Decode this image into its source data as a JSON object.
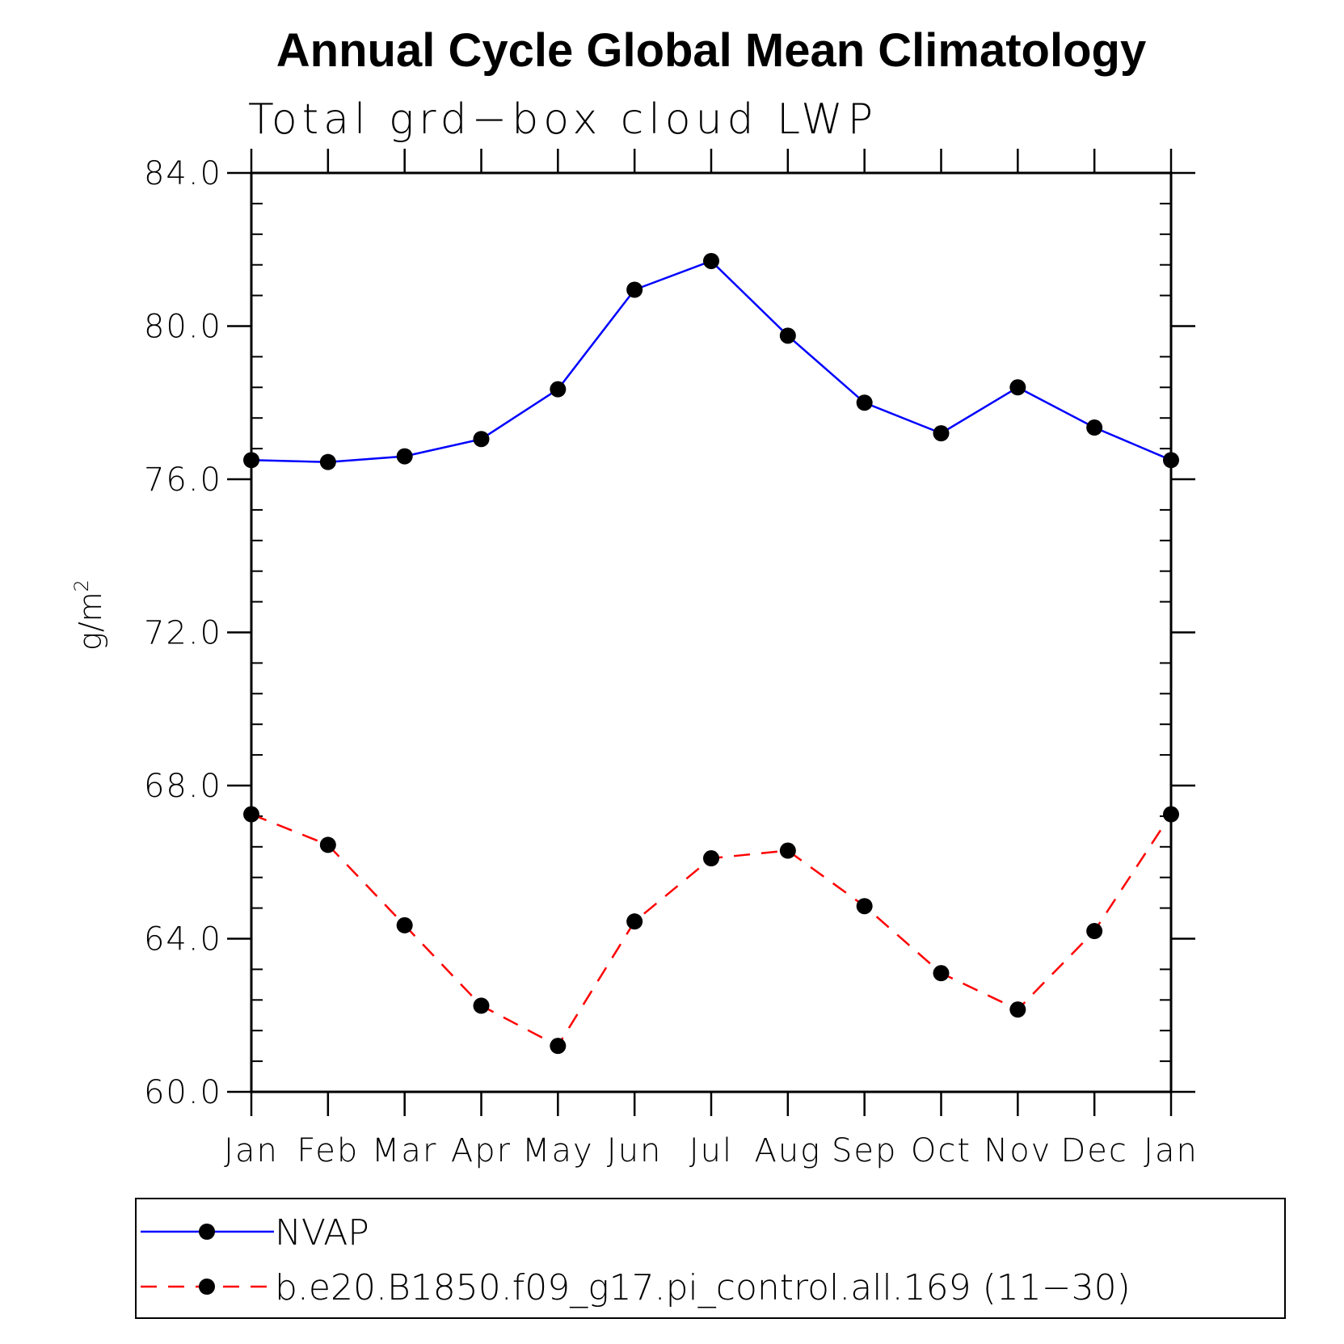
{
  "chart_data": {
    "type": "line",
    "title": "Annual Cycle Global Mean Climatology",
    "subtitle": "Total grd−box cloud LWP",
    "xlabel": "",
    "ylabel": "g/m",
    "ylabel_superscript": "2",
    "categories": [
      "Jan",
      "Feb",
      "Mar",
      "Apr",
      "May",
      "Jun",
      "Jul",
      "Aug",
      "Sep",
      "Oct",
      "Nov",
      "Dec",
      "Jan"
    ],
    "ylim": [
      60,
      84
    ],
    "yticks": [
      "60.0",
      "64.0",
      "68.0",
      "72.0",
      "76.0",
      "80.0",
      "84.0"
    ],
    "series": [
      {
        "name": "NVAP",
        "color": "#0000ff",
        "line_style": "solid",
        "marker": "filled-circle",
        "values": [
          76.5,
          76.45,
          76.6,
          77.05,
          78.35,
          80.95,
          81.7,
          79.75,
          78.0,
          77.2,
          78.4,
          77.35,
          76.5
        ]
      },
      {
        "name": "b.e20.B1850.f09_g17.pi_control.all.169 (11−30)",
        "color": "#ff0000",
        "line_style": "dashed",
        "marker": "filled-circle",
        "values": [
          67.25,
          66.45,
          64.35,
          62.25,
          61.2,
          64.45,
          66.1,
          66.3,
          64.85,
          63.1,
          62.15,
          64.2,
          67.25
        ]
      }
    ],
    "legend_position": "bottom"
  }
}
